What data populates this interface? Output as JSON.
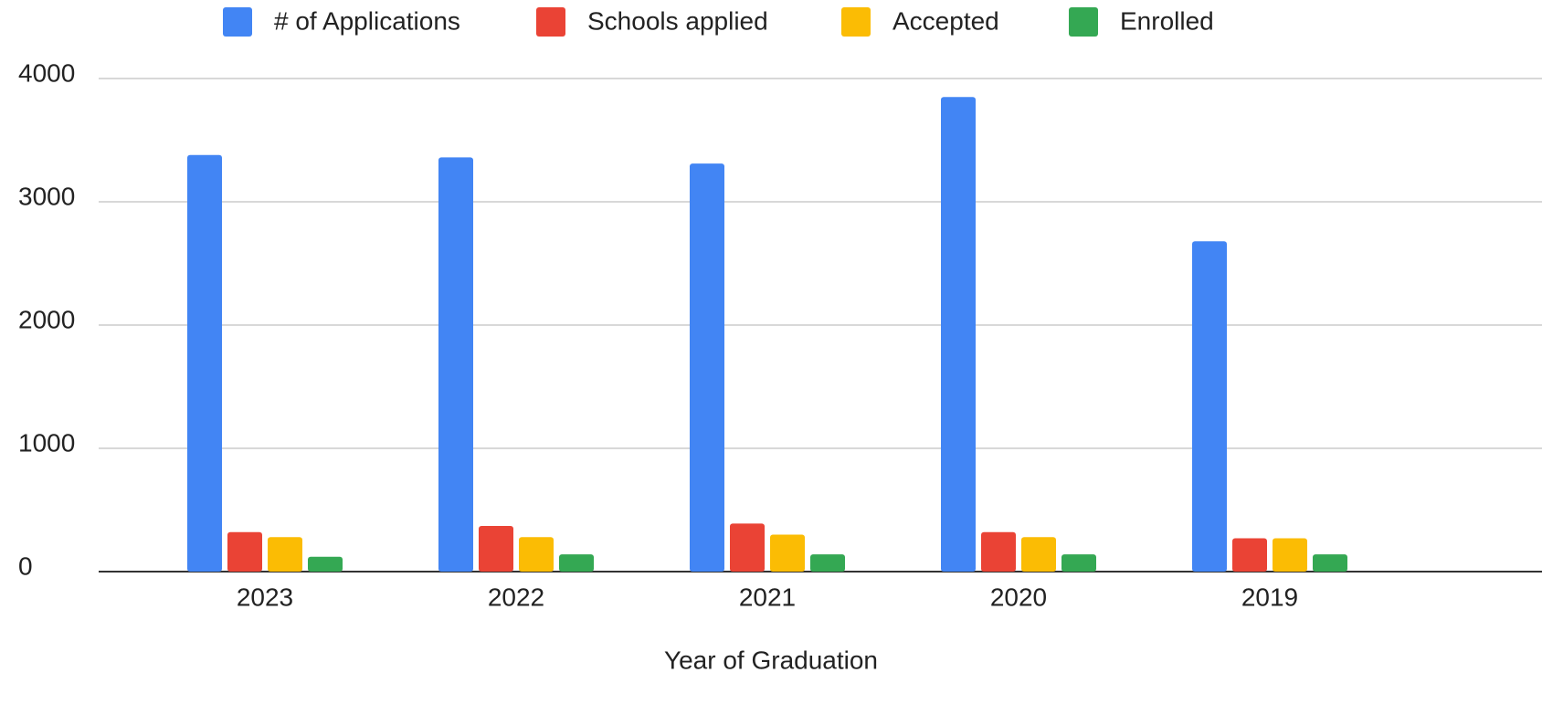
{
  "chart_data": {
    "type": "bar",
    "x_label": "Year of Graduation",
    "categories": [
      "2023",
      "2022",
      "2021",
      "2020",
      "2019"
    ],
    "series": [
      {
        "name": "# of Applications",
        "color": "#4285f4",
        "values": [
          3380,
          3360,
          3310,
          3850,
          2680
        ]
      },
      {
        "name": "Schools applied",
        "color": "#ea4335",
        "values": [
          320,
          370,
          390,
          320,
          270
        ]
      },
      {
        "name": "Accepted",
        "color": "#fbbc04",
        "values": [
          280,
          280,
          300,
          280,
          270
        ]
      },
      {
        "name": "Enrolled",
        "color": "#34a853",
        "values": [
          120,
          140,
          140,
          140,
          140
        ]
      }
    ],
    "ylim": [
      0,
      4000
    ],
    "yticks": [
      0,
      1000,
      2000,
      3000,
      4000
    ],
    "grid": true,
    "legend": "top"
  }
}
